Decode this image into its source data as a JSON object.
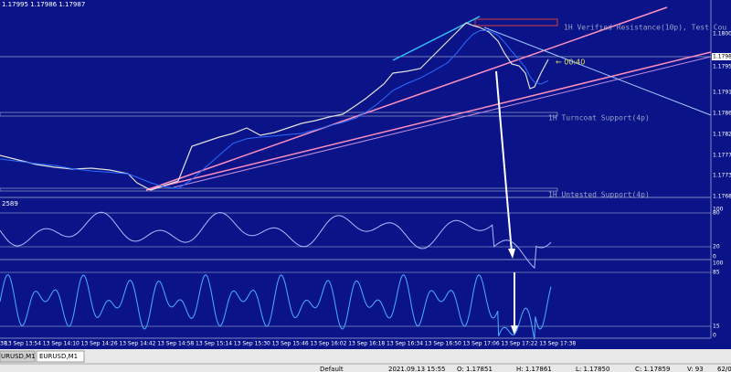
{
  "header": {
    "quote": "1.17995 1.17986 1.17987"
  },
  "price_axis": {
    "labels": [
      "1.18005",
      "1.17987",
      "1.17955",
      "1.17910",
      "1.17865",
      "1.17820",
      "1.17775",
      "1.17730",
      "1.17685"
    ]
  },
  "levels": {
    "resistance": "1H Verified Resistance(10p), Test Cou",
    "turncoat": "1H Turncoat Support(4p)",
    "untested": "1H Untested Support(4p)",
    "timer": "← 00:40"
  },
  "oscillator_1": {
    "label": "2589",
    "scale": [
      "100",
      "80",
      "20",
      "0"
    ]
  },
  "oscillator_2": {
    "scale": [
      "100",
      "85",
      "15",
      "0"
    ]
  },
  "time_axis": {
    "labels": [
      "38",
      "13 Sep 13:54",
      "13 Sep 14:10",
      "13 Sep 14:26",
      "13 Sep 14:42",
      "13 Sep 14:58",
      "13 Sep 15:14",
      "13 Sep 15:30",
      "13 Sep 15:46",
      "13 Sep 16:02",
      "13 Sep 16:18",
      "13 Sep 16:34",
      "13 Sep 16:50",
      "13 Sep 17:06",
      "13 Sep 17:22",
      "13 Sep 17:38"
    ]
  },
  "tabs": [
    "URUSD,M1",
    "EURUSD,M1"
  ],
  "status_bar": [
    "Default",
    "2021.09.13 15:55",
    "O: 1.17851",
    "H: 1.17861",
    "L: 1.17850",
    "C: 1.17859",
    "V: 93",
    "62/0 kb"
  ]
}
